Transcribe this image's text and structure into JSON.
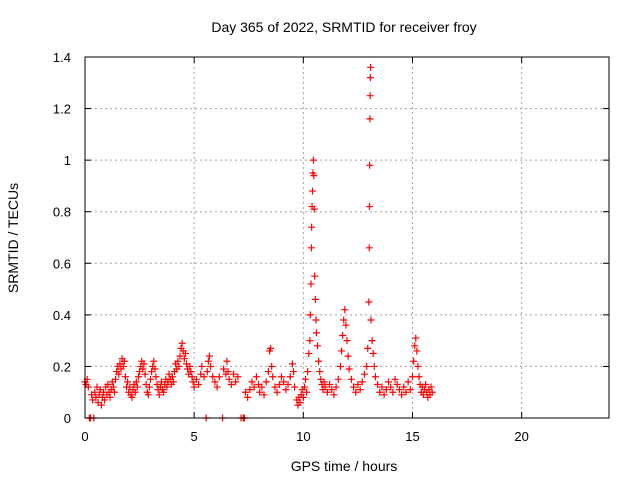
{
  "chart_data": {
    "type": "scatter",
    "title": "Day 365 of 2022, SRMTID for receiver froy",
    "xlabel": "GPS time / hours",
    "ylabel": "SRMTID / TECUs",
    "xlim": [
      0,
      24
    ],
    "ylim": [
      0,
      1.4
    ],
    "x_ticks": [
      0,
      5,
      10,
      15,
      20
    ],
    "x_tick_labels": [
      "0",
      "5",
      "10",
      "15",
      "20"
    ],
    "y_ticks": [
      0,
      0.2,
      0.4,
      0.6,
      0.8,
      1,
      1.2,
      1.4
    ],
    "y_tick_labels": [
      "0",
      "0.2",
      "0.4",
      "0.6",
      "0.8",
      "1",
      "1.2",
      "1.4"
    ],
    "grid": true,
    "marker": "+",
    "series_color": "#ff0000",
    "series": [
      {
        "name": "SRMTID",
        "points": [
          [
            0.0,
            0.14
          ],
          [
            0.05,
            0.13
          ],
          [
            0.1,
            0.15
          ],
          [
            0.15,
            0.12
          ],
          [
            0.2,
            0.0
          ],
          [
            0.25,
            0.0
          ],
          [
            0.3,
            0.09
          ],
          [
            0.35,
            0.07
          ],
          [
            0.4,
            0.0
          ],
          [
            0.45,
            0.1
          ],
          [
            0.5,
            0.08
          ],
          [
            0.55,
            0.12
          ],
          [
            0.6,
            0.06
          ],
          [
            0.65,
            0.09
          ],
          [
            0.7,
            0.11
          ],
          [
            0.75,
            0.05
          ],
          [
            0.8,
            0.08
          ],
          [
            0.85,
            0.1
          ],
          [
            0.9,
            0.07
          ],
          [
            0.95,
            0.12
          ],
          [
            1.0,
            0.09
          ],
          [
            1.05,
            0.13
          ],
          [
            1.1,
            0.1
          ],
          [
            1.15,
            0.08
          ],
          [
            1.2,
            0.11
          ],
          [
            1.25,
            0.14
          ],
          [
            1.3,
            0.12
          ],
          [
            1.35,
            0.1
          ],
          [
            1.4,
            0.15
          ],
          [
            1.45,
            0.18
          ],
          [
            1.5,
            0.2
          ],
          [
            1.55,
            0.17
          ],
          [
            1.6,
            0.21
          ],
          [
            1.65,
            0.19
          ],
          [
            1.7,
            0.23
          ],
          [
            1.75,
            0.2
          ],
          [
            1.8,
            0.22
          ],
          [
            1.85,
            0.16
          ],
          [
            1.9,
            0.12
          ],
          [
            1.95,
            0.14
          ],
          [
            2.0,
            0.1
          ],
          [
            2.05,
            0.12
          ],
          [
            2.1,
            0.09
          ],
          [
            2.15,
            0.08
          ],
          [
            2.2,
            0.11
          ],
          [
            2.25,
            0.13
          ],
          [
            2.3,
            0.1
          ],
          [
            2.35,
            0.14
          ],
          [
            2.4,
            0.12
          ],
          [
            2.45,
            0.16
          ],
          [
            2.5,
            0.18
          ],
          [
            2.55,
            0.2
          ],
          [
            2.6,
            0.22
          ],
          [
            2.65,
            0.19
          ],
          [
            2.7,
            0.21
          ],
          [
            2.75,
            0.17
          ],
          [
            2.8,
            0.13
          ],
          [
            2.85,
            0.1
          ],
          [
            2.9,
            0.09
          ],
          [
            2.95,
            0.12
          ],
          [
            3.0,
            0.15
          ],
          [
            3.05,
            0.18
          ],
          [
            3.1,
            0.2
          ],
          [
            3.15,
            0.22
          ],
          [
            3.2,
            0.19
          ],
          [
            3.25,
            0.16
          ],
          [
            3.3,
            0.13
          ],
          [
            3.35,
            0.11
          ],
          [
            3.4,
            0.09
          ],
          [
            3.45,
            0.12
          ],
          [
            3.5,
            0.14
          ],
          [
            3.55,
            0.11
          ],
          [
            3.6,
            0.1
          ],
          [
            3.65,
            0.13
          ],
          [
            3.7,
            0.15
          ],
          [
            3.75,
            0.12
          ],
          [
            3.8,
            0.14
          ],
          [
            3.85,
            0.17
          ],
          [
            3.9,
            0.15
          ],
          [
            3.95,
            0.13
          ],
          [
            4.0,
            0.16
          ],
          [
            4.05,
            0.14
          ],
          [
            4.1,
            0.18
          ],
          [
            4.15,
            0.21
          ],
          [
            4.2,
            0.19
          ],
          [
            4.25,
            0.22
          ],
          [
            4.3,
            0.2
          ],
          [
            4.35,
            0.24
          ],
          [
            4.4,
            0.27
          ],
          [
            4.45,
            0.29
          ],
          [
            4.5,
            0.26
          ],
          [
            4.55,
            0.23
          ],
          [
            4.6,
            0.25
          ],
          [
            4.65,
            0.21
          ],
          [
            4.7,
            0.19
          ],
          [
            4.75,
            0.17
          ],
          [
            4.8,
            0.2
          ],
          [
            4.85,
            0.18
          ],
          [
            4.9,
            0.16
          ],
          [
            4.95,
            0.14
          ],
          [
            5.0,
            0.12
          ],
          [
            5.1,
            0.15
          ],
          [
            5.2,
            0.13
          ],
          [
            5.3,
            0.17
          ],
          [
            5.35,
            0.2
          ],
          [
            5.45,
            0.16
          ],
          [
            5.55,
            0.0
          ],
          [
            5.6,
            0.18
          ],
          [
            5.65,
            0.22
          ],
          [
            5.7,
            0.24
          ],
          [
            5.75,
            0.2
          ],
          [
            5.85,
            0.16
          ],
          [
            5.95,
            0.14
          ],
          [
            6.05,
            0.12
          ],
          [
            6.15,
            0.16
          ],
          [
            6.3,
            0.0
          ],
          [
            6.35,
            0.19
          ],
          [
            6.45,
            0.17
          ],
          [
            6.5,
            0.22
          ],
          [
            6.55,
            0.18
          ],
          [
            6.6,
            0.15
          ],
          [
            6.7,
            0.13
          ],
          [
            6.8,
            0.17
          ],
          [
            6.9,
            0.14
          ],
          [
            7.0,
            0.16
          ],
          [
            7.15,
            0.0
          ],
          [
            7.25,
            0.0
          ],
          [
            7.3,
            0.0
          ],
          [
            7.35,
            0.1
          ],
          [
            7.45,
            0.08
          ],
          [
            7.55,
            0.11
          ],
          [
            7.65,
            0.14
          ],
          [
            7.75,
            0.12
          ],
          [
            7.85,
            0.16
          ],
          [
            7.95,
            0.13
          ],
          [
            8.0,
            0.1
          ],
          [
            8.1,
            0.12
          ],
          [
            8.2,
            0.09
          ],
          [
            8.3,
            0.14
          ],
          [
            8.4,
            0.18
          ],
          [
            8.45,
            0.26
          ],
          [
            8.5,
            0.27
          ],
          [
            8.55,
            0.2
          ],
          [
            8.6,
            0.16
          ],
          [
            8.7,
            0.12
          ],
          [
            8.8,
            0.1
          ],
          [
            8.9,
            0.13
          ],
          [
            9.0,
            0.16
          ],
          [
            9.1,
            0.14
          ],
          [
            9.2,
            0.11
          ],
          [
            9.3,
            0.13
          ],
          [
            9.4,
            0.16
          ],
          [
            9.5,
            0.21
          ],
          [
            9.55,
            0.18
          ],
          [
            9.6,
            0.12
          ],
          [
            9.7,
            0.07
          ],
          [
            9.75,
            0.05
          ],
          [
            9.8,
            0.08
          ],
          [
            9.85,
            0.06
          ],
          [
            9.9,
            0.09
          ],
          [
            9.95,
            0.11
          ],
          [
            10.0,
            0.08
          ],
          [
            10.05,
            0.12
          ],
          [
            10.1,
            0.15
          ],
          [
            10.15,
            0.1
          ],
          [
            10.2,
            0.18
          ],
          [
            10.25,
            0.25
          ],
          [
            10.3,
            0.3
          ],
          [
            10.32,
            0.4
          ],
          [
            10.35,
            0.52
          ],
          [
            10.37,
            0.66
          ],
          [
            10.38,
            0.74
          ],
          [
            10.4,
            0.82
          ],
          [
            10.42,
            0.88
          ],
          [
            10.44,
            0.95
          ],
          [
            10.46,
            1.0
          ],
          [
            10.48,
            0.94
          ],
          [
            10.5,
            0.81
          ],
          [
            10.52,
            0.55
          ],
          [
            10.55,
            0.46
          ],
          [
            10.58,
            0.38
          ],
          [
            10.6,
            0.33
          ],
          [
            10.65,
            0.28
          ],
          [
            10.7,
            0.22
          ],
          [
            10.75,
            0.18
          ],
          [
            10.8,
            0.15
          ],
          [
            10.85,
            0.13
          ],
          [
            10.9,
            0.11
          ],
          [
            10.95,
            0.14
          ],
          [
            11.0,
            0.12
          ],
          [
            11.1,
            0.1
          ],
          [
            11.2,
            0.13
          ],
          [
            11.3,
            0.11
          ],
          [
            11.4,
            0.09
          ],
          [
            11.5,
            0.12
          ],
          [
            11.6,
            0.15
          ],
          [
            11.7,
            0.2
          ],
          [
            11.75,
            0.26
          ],
          [
            11.8,
            0.32
          ],
          [
            11.85,
            0.38
          ],
          [
            11.9,
            0.42
          ],
          [
            11.95,
            0.36
          ],
          [
            12.0,
            0.3
          ],
          [
            12.05,
            0.24
          ],
          [
            12.1,
            0.19
          ],
          [
            12.2,
            0.15
          ],
          [
            12.3,
            0.12
          ],
          [
            12.4,
            0.1
          ],
          [
            12.5,
            0.13
          ],
          [
            12.6,
            0.11
          ],
          [
            12.7,
            0.14
          ],
          [
            12.8,
            0.17
          ],
          [
            12.9,
            0.2
          ],
          [
            12.95,
            0.27
          ],
          [
            13.0,
            0.45
          ],
          [
            13.02,
            0.66
          ],
          [
            13.03,
            0.82
          ],
          [
            13.04,
            0.98
          ],
          [
            13.05,
            1.16
          ],
          [
            13.06,
            1.25
          ],
          [
            13.07,
            1.32
          ],
          [
            13.08,
            1.36
          ],
          [
            13.1,
            0.38
          ],
          [
            13.15,
            0.3
          ],
          [
            13.2,
            0.25
          ],
          [
            13.25,
            0.2
          ],
          [
            13.3,
            0.16
          ],
          [
            13.4,
            0.13
          ],
          [
            13.5,
            0.1
          ],
          [
            13.6,
            0.12
          ],
          [
            13.7,
            0.09
          ],
          [
            13.8,
            0.11
          ],
          [
            13.9,
            0.14
          ],
          [
            14.0,
            0.12
          ],
          [
            14.1,
            0.1
          ],
          [
            14.2,
            0.15
          ],
          [
            14.3,
            0.13
          ],
          [
            14.4,
            0.11
          ],
          [
            14.5,
            0.09
          ],
          [
            14.6,
            0.12
          ],
          [
            14.7,
            0.1
          ],
          [
            14.8,
            0.14
          ],
          [
            14.9,
            0.11
          ],
          [
            15.0,
            0.16
          ],
          [
            15.05,
            0.22
          ],
          [
            15.1,
            0.28
          ],
          [
            15.15,
            0.31
          ],
          [
            15.2,
            0.26
          ],
          [
            15.25,
            0.2
          ],
          [
            15.3,
            0.16
          ],
          [
            15.35,
            0.13
          ],
          [
            15.4,
            0.1
          ],
          [
            15.45,
            0.12
          ],
          [
            15.5,
            0.09
          ],
          [
            15.55,
            0.11
          ],
          [
            15.6,
            0.13
          ],
          [
            15.65,
            0.1
          ],
          [
            15.7,
            0.08
          ],
          [
            15.75,
            0.11
          ],
          [
            15.8,
            0.09
          ],
          [
            15.85,
            0.12
          ],
          [
            15.9,
            0.1
          ]
        ]
      }
    ]
  }
}
